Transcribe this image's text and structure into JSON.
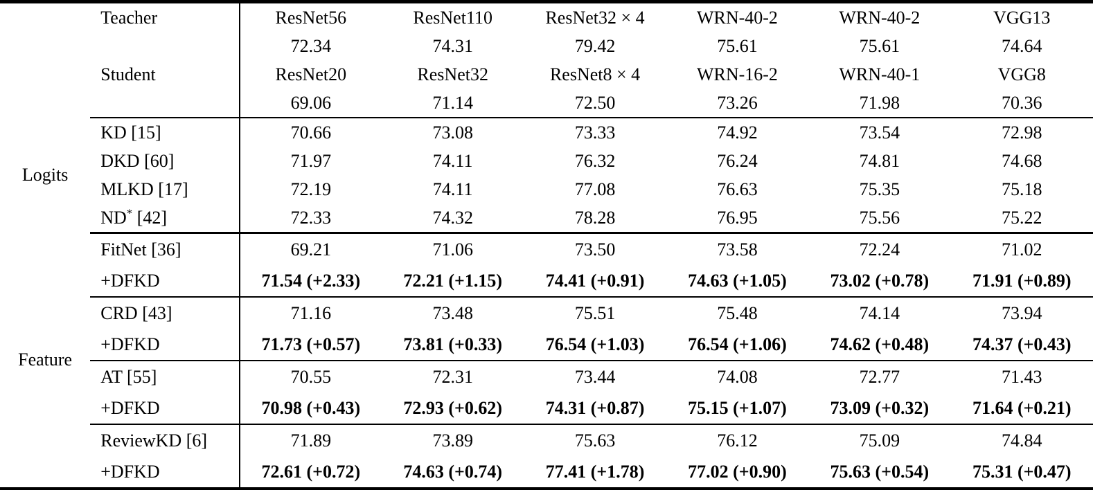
{
  "header": {
    "teacher_label": "Teacher",
    "student_label": "Student",
    "teachers": [
      "ResNet56",
      "ResNet110",
      "ResNet32 × 4",
      "WRN-40-2",
      "WRN-40-2",
      "VGG13"
    ],
    "teacher_acc": [
      "72.34",
      "74.31",
      "79.42",
      "75.61",
      "75.61",
      "74.64"
    ],
    "students": [
      "ResNet20",
      "ResNet32",
      "ResNet8 × 4",
      "WRN-16-2",
      "WRN-40-1",
      "VGG8"
    ],
    "student_acc": [
      "69.06",
      "71.14",
      "72.50",
      "73.26",
      "71.98",
      "70.36"
    ]
  },
  "groups": {
    "logits": "Logits",
    "feature": "Feature"
  },
  "logits_rows": [
    {
      "method": "KD",
      "sup": "",
      "ref": "[15]",
      "values": [
        "70.66",
        "73.08",
        "73.33",
        "74.92",
        "73.54",
        "72.98"
      ]
    },
    {
      "method": "DKD",
      "sup": "",
      "ref": "[60]",
      "values": [
        "71.97",
        "74.11",
        "76.32",
        "76.24",
        "74.81",
        "74.68"
      ]
    },
    {
      "method": "MLKD",
      "sup": "",
      "ref": "[17]",
      "values": [
        "72.19",
        "74.11",
        "77.08",
        "76.63",
        "75.35",
        "75.18"
      ]
    },
    {
      "method": "ND",
      "sup": "*",
      "ref": "[42]",
      "values": [
        "72.33",
        "74.32",
        "78.28",
        "76.95",
        "75.56",
        "75.22"
      ]
    }
  ],
  "feature_blocks": [
    {
      "base_method": "FitNet",
      "base_ref": "[36]",
      "base_values": [
        "69.21",
        "71.06",
        "73.50",
        "73.58",
        "72.24",
        "71.02"
      ],
      "dfkd_label": "+DFKD",
      "dfkd_values": [
        "71.54 (+2.33)",
        "72.21 (+1.15)",
        "74.41 (+0.91)",
        "74.63 (+1.05)",
        "73.02 (+0.78)",
        "71.91 (+0.89)"
      ]
    },
    {
      "base_method": "CRD",
      "base_ref": "[43]",
      "base_values": [
        "71.16",
        "73.48",
        "75.51",
        "75.48",
        "74.14",
        "73.94"
      ],
      "dfkd_label": "+DFKD",
      "dfkd_values": [
        "71.73 (+0.57)",
        "73.81 (+0.33)",
        "76.54 (+1.03)",
        "76.54 (+1.06)",
        "74.62 (+0.48)",
        "74.37 (+0.43)"
      ]
    },
    {
      "base_method": "AT",
      "base_ref": "[55]",
      "base_values": [
        "70.55",
        "72.31",
        "73.44",
        "74.08",
        "72.77",
        "71.43"
      ],
      "dfkd_label": "+DFKD",
      "dfkd_values": [
        "70.98 (+0.43)",
        "72.93 (+0.62)",
        "74.31 (+0.87)",
        "75.15 (+1.07)",
        "73.09 (+0.32)",
        "71.64 (+0.21)"
      ]
    },
    {
      "base_method": "ReviewKD",
      "base_ref": "[6]",
      "base_values": [
        "71.89",
        "73.89",
        "75.63",
        "76.12",
        "75.09",
        "74.84"
      ],
      "dfkd_label": "+DFKD",
      "dfkd_values": [
        "72.61 (+0.72)",
        "74.63 (+0.74)",
        "77.41 (+1.78)",
        "77.02 (+0.90)",
        "75.63 (+0.54)",
        "75.31 (+0.47)"
      ]
    }
  ]
}
